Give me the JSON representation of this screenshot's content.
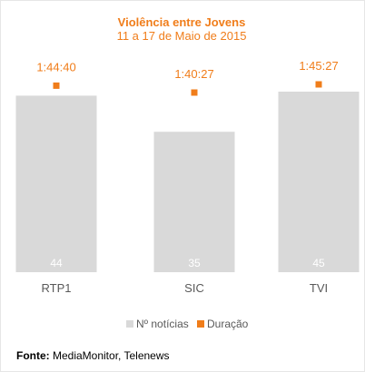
{
  "chart_data": {
    "type": "bar",
    "title": "Violência entre Jovens",
    "subtitle": "11 a 17 de Maio de 2015",
    "categories": [
      "RTP1",
      "SIC",
      "TVI"
    ],
    "series": [
      {
        "name": "Nº notícias",
        "values": [
          44,
          35,
          45
        ],
        "color": "#d9d9d9"
      },
      {
        "name": "Duração",
        "values": [
          "1:44:40",
          "1:40:27",
          "1:45:27"
        ],
        "color": "#f07d1a"
      }
    ],
    "legend_position": "bottom",
    "grid": false
  },
  "source": {
    "label": "Fonte:",
    "text": " MediaMonitor, Telenews"
  }
}
